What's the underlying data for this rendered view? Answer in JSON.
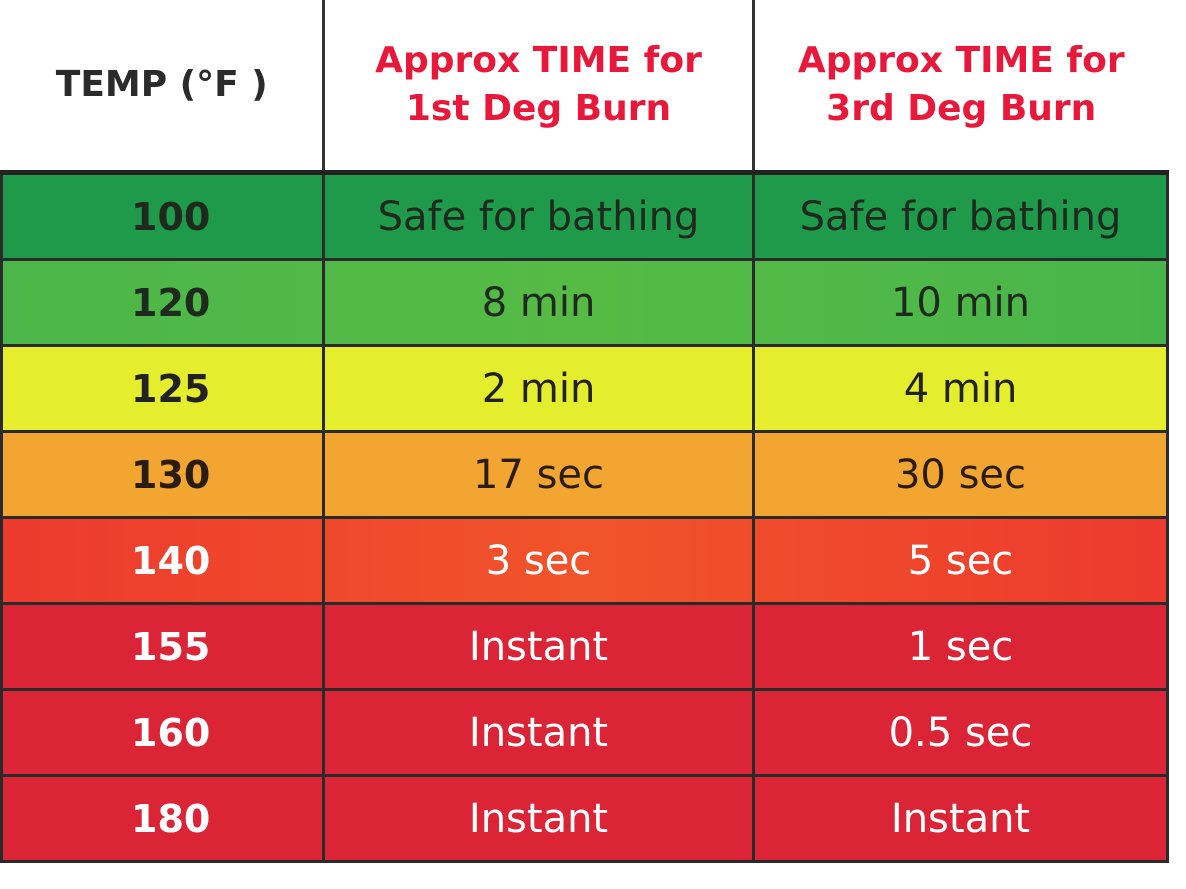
{
  "table": {
    "header": [
      [
        "TEMP (°F )"
      ],
      [
        "Approx TIME for",
        "1st Deg Burn"
      ],
      [
        "Approx TIME for",
        "3rd Deg Burn"
      ]
    ],
    "rows": [
      [
        "100",
        "Safe for bathing",
        "Safe for bathing"
      ],
      [
        "120",
        "8 min",
        "10 min"
      ],
      [
        "125",
        "2 min",
        "4 min"
      ],
      [
        "130",
        "17 sec",
        "30 sec"
      ],
      [
        "140",
        "3 sec",
        "5 sec"
      ],
      [
        "155",
        "Instant",
        "1 sec"
      ],
      [
        "160",
        "Instant",
        "0.5 sec"
      ],
      [
        "180",
        "Instant",
        "Instant"
      ]
    ]
  }
}
